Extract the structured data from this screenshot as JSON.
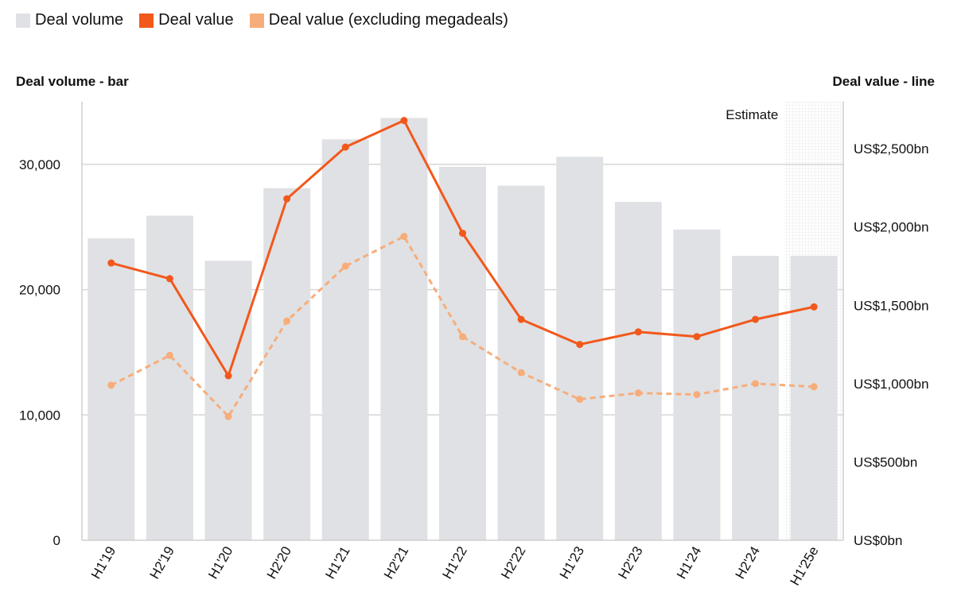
{
  "legend": [
    {
      "label": "Deal volume",
      "color": "#dfe1e4"
    },
    {
      "label": "Deal value",
      "color": "#f2581b"
    },
    {
      "label": "Deal value (excluding megadeals)",
      "color": "#f7ad7a"
    }
  ],
  "left_axis_title": "Deal volume - bar",
  "right_axis_title": "Deal value - line",
  "estimate_label": "Estimate",
  "chart_data": {
    "type": "bar",
    "categories": [
      "H1'19",
      "H2'19",
      "H1'20",
      "H2'20",
      "H1'21",
      "H2'21",
      "H1'22",
      "H2'22",
      "H1'23",
      "H2'23",
      "H1'24",
      "H2'24",
      "H1'25e"
    ],
    "series": [
      {
        "name": "Deal volume",
        "type": "bar",
        "axis": "left",
        "color": "#dfe1e4",
        "values": [
          24100,
          25900,
          22300,
          28100,
          32000,
          33700,
          29800,
          28300,
          30600,
          27000,
          24800,
          22700,
          22700
        ]
      },
      {
        "name": "Deal value",
        "type": "line",
        "axis": "right",
        "color": "#f2581b",
        "dashed": false,
        "values": [
          1770,
          1670,
          1050,
          2180,
          2510,
          2680,
          1960,
          1410,
          1250,
          1330,
          1300,
          1410,
          1490
        ]
      },
      {
        "name": "Deal value (excluding megadeals)",
        "type": "line",
        "axis": "right",
        "color": "#f7ad7a",
        "dashed": true,
        "values": [
          990,
          1180,
          790,
          1400,
          1750,
          1940,
          1300,
          1070,
          900,
          940,
          930,
          1000,
          980
        ]
      }
    ],
    "left_axis": {
      "title": "Deal volume - bar",
      "ylim": [
        0,
        35000
      ],
      "ticks": [
        0,
        10000,
        20000,
        30000
      ],
      "tick_labels": [
        "0",
        "10,000",
        "20,000",
        "30,000"
      ]
    },
    "right_axis": {
      "title": "Deal value - line",
      "ylim": [
        0,
        2800
      ],
      "ticks": [
        0,
        500,
        1000,
        1500,
        2000,
        2500
      ],
      "tick_labels": [
        "US$0bn",
        "US$500bn",
        "US$1,000bn",
        "US$1,500bn",
        "US$2,000bn",
        "US$2,500bn"
      ]
    },
    "estimate_category": "H1'25e",
    "grid": true,
    "legend_position": "top-left"
  }
}
